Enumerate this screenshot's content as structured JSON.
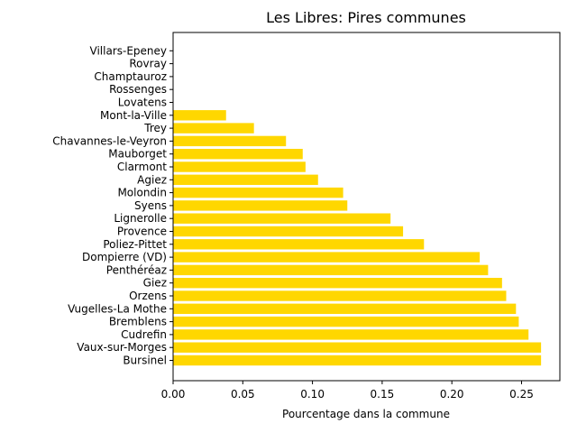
{
  "chart_data": {
    "type": "bar",
    "orientation": "horizontal",
    "title": "Les Libres: Pires communes",
    "xlabel": "Pourcentage dans la commune",
    "ylabel": "",
    "xlim": [
      0,
      0.2775
    ],
    "xticks": [
      "0.00",
      "0.05",
      "0.10",
      "0.15",
      "0.20",
      "0.25"
    ],
    "grid": false,
    "bar_color": "#ffd700",
    "categories": [
      "Bursinel",
      "Vaux-sur-Morges",
      "Cudrefin",
      "Bremblens",
      "Vugelles-La Mothe",
      "Orzens",
      "Giez",
      "Penthéréaz",
      "Dompierre (VD)",
      "Poliez-Pittet",
      "Provence",
      "Lignerolle",
      "Syens",
      "Molondin",
      "Agiez",
      "Clarmont",
      "Mauborget",
      "Chavannes-le-Veyron",
      "Trey",
      "Mont-la-Ville",
      "Lovatens",
      "Rossenges",
      "Champtauroz",
      "Rovray",
      "Villars-Epeney"
    ],
    "values": [
      0.264,
      0.264,
      0.255,
      0.248,
      0.246,
      0.239,
      0.236,
      0.226,
      0.22,
      0.18,
      0.165,
      0.156,
      0.125,
      0.122,
      0.104,
      0.095,
      0.093,
      0.081,
      0.058,
      0.038,
      0.0,
      0.0,
      0.0,
      0.0,
      0.0
    ]
  }
}
